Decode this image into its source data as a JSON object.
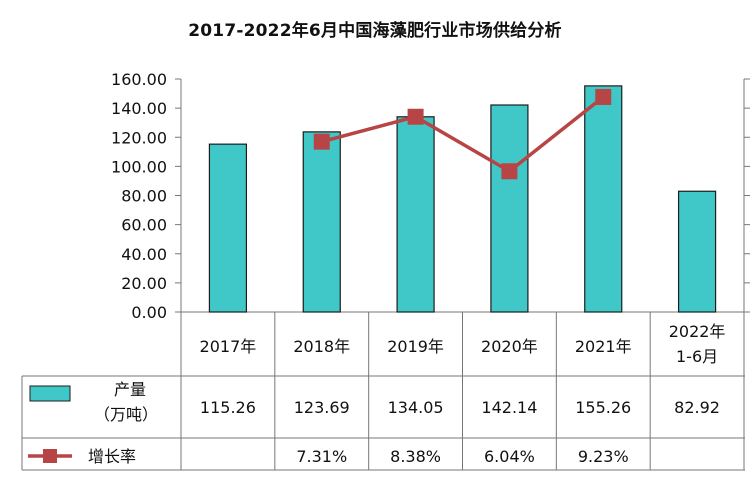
{
  "chart_data": {
    "type": "bar",
    "title": "2017-2022年6月中国海藻肥行业市场供给分析",
    "categories": [
      "2017年",
      "2018年",
      "2019年",
      "2020年",
      "2021年",
      "2022年 1-6月"
    ],
    "category_lines": [
      [
        "2017年"
      ],
      [
        "2018年"
      ],
      [
        "2019年"
      ],
      [
        "2020年"
      ],
      [
        "2021年"
      ],
      [
        "2022年",
        "1-6月"
      ]
    ],
    "ylim": [
      0,
      160
    ],
    "yticks": [
      "0.00",
      "20.00",
      "40.00",
      "60.00",
      "80.00",
      "100.00",
      "120.00",
      "140.00",
      "160.00"
    ],
    "grid": false,
    "series": [
      {
        "name": "产量（万吨）",
        "name_lines": [
          "产量",
          "（万吨）"
        ],
        "kind": "bar",
        "color": "#40c8c8",
        "values": [
          115.26,
          123.69,
          134.05,
          142.14,
          155.26,
          82.92
        ],
        "labels": [
          "115.26",
          "123.69",
          "134.05",
          "142.14",
          "155.26",
          "82.92"
        ]
      },
      {
        "name": "增长率",
        "kind": "line",
        "axis": "secondary",
        "color": "#b84545",
        "values": [
          null,
          7.31,
          8.38,
          6.04,
          9.23,
          null
        ],
        "labels": [
          "",
          "7.31%",
          "8.38%",
          "6.04%",
          "9.23%",
          ""
        ]
      }
    ],
    "secondary_axis_range": [
      0,
      10
    ]
  }
}
